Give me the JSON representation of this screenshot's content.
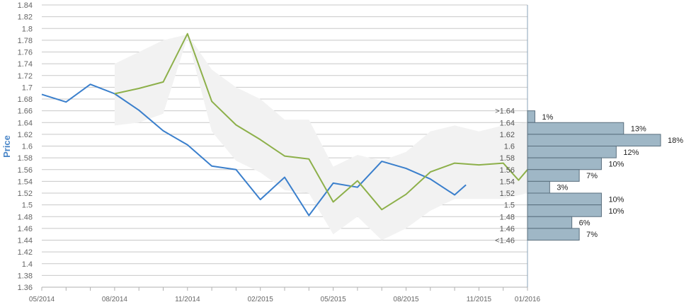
{
  "chart_data": {
    "type": "line",
    "ylabel": "Price",
    "ylim": [
      1.36,
      1.84
    ],
    "yticks": [
      "1.36",
      "1.38",
      "1.4",
      "1.42",
      "1.44",
      "1.46",
      "1.48",
      "1.5",
      "1.52",
      "1.54",
      "1.56",
      "1.58",
      "1.6",
      "1.62",
      "1.64",
      "1.66",
      "1.68",
      "1.7",
      "1.72",
      "1.74",
      "1.76",
      "1.78",
      "1.8",
      "1.82",
      "1.84"
    ],
    "xlim": [
      "2014-05",
      "2016-01"
    ],
    "xticks": [
      {
        "date": "2014-05",
        "label": "05/2014"
      },
      {
        "date": "2014-08",
        "label": "08/2014"
      },
      {
        "date": "2014-11",
        "label": "11/2014"
      },
      {
        "date": "2015-02",
        "label": "02/2015"
      },
      {
        "date": "2015-05",
        "label": "05/2015"
      },
      {
        "date": "2015-08",
        "label": "08/2015"
      },
      {
        "date": "2015-11",
        "label": "11/2015"
      },
      {
        "date": "2016-01",
        "label": "01/2016"
      }
    ],
    "grid": true,
    "series": [
      {
        "color": "#3a7fcc",
        "points": [
          [
            "2014-05",
            1.688
          ],
          [
            "2014-06",
            1.675
          ],
          [
            "2014-07",
            1.705
          ],
          [
            "2014-08",
            1.689
          ],
          [
            "2014-09",
            1.661
          ],
          [
            "2014-10",
            1.626
          ],
          [
            "2014-11",
            1.602
          ],
          [
            "2014-12",
            1.566
          ],
          [
            "2015-01",
            1.56
          ],
          [
            "2015-02",
            1.509
          ],
          [
            "2015-03",
            1.547
          ],
          [
            "2015-04",
            1.482
          ],
          [
            "2015-05",
            1.537
          ],
          [
            "2015-06",
            1.53
          ],
          [
            "2015-07",
            1.574
          ],
          [
            "2015-08",
            1.562
          ],
          [
            "2015-09",
            1.544
          ],
          [
            "2015-10",
            1.517
          ],
          [
            "2015-10-15",
            1.534
          ]
        ]
      },
      {
        "color": "#8db04a",
        "points": [
          [
            "2014-08",
            1.689
          ],
          [
            "2014-09",
            1.698
          ],
          [
            "2014-10",
            1.709
          ],
          [
            "2014-11",
            1.791
          ],
          [
            "2014-12",
            1.676
          ],
          [
            "2015-01",
            1.636
          ],
          [
            "2015-02",
            1.611
          ],
          [
            "2015-03",
            1.583
          ],
          [
            "2015-04",
            1.578
          ],
          [
            "2015-05",
            1.505
          ],
          [
            "2015-06",
            1.541
          ],
          [
            "2015-07",
            1.492
          ],
          [
            "2015-08",
            1.518
          ],
          [
            "2015-09",
            1.556
          ],
          [
            "2015-10",
            1.571
          ],
          [
            "2015-11",
            1.568
          ],
          [
            "2015-12",
            1.571
          ],
          [
            "2015-12-20",
            1.542
          ],
          [
            "2016-01",
            1.56
          ]
        ]
      }
    ],
    "band": {
      "color": "#f2f2f2",
      "upper": [
        [
          "2014-08",
          1.74
        ],
        [
          "2014-09",
          1.76
        ],
        [
          "2014-10",
          1.78
        ],
        [
          "2014-11",
          1.79
        ],
        [
          "2014-12",
          1.73
        ],
        [
          "2015-01",
          1.7
        ],
        [
          "2015-02",
          1.68
        ],
        [
          "2015-03",
          1.645
        ],
        [
          "2015-04",
          1.645
        ],
        [
          "2015-05",
          1.565
        ],
        [
          "2015-06",
          1.585
        ],
        [
          "2015-07",
          1.575
        ],
        [
          "2015-08",
          1.59
        ],
        [
          "2015-09",
          1.625
        ],
        [
          "2015-10",
          1.635
        ],
        [
          "2015-11",
          1.625
        ],
        [
          "2015-12",
          1.635
        ],
        [
          "2016-01",
          1.64
        ]
      ],
      "lower": [
        [
          "2014-08",
          1.635
        ],
        [
          "2014-09",
          1.64
        ],
        [
          "2014-10",
          1.655
        ],
        [
          "2014-11",
          1.785
        ],
        [
          "2014-12",
          1.625
        ],
        [
          "2015-01",
          1.575
        ],
        [
          "2015-02",
          1.555
        ],
        [
          "2015-03",
          1.525
        ],
        [
          "2015-04",
          1.52
        ],
        [
          "2015-05",
          1.45
        ],
        [
          "2015-06",
          1.48
        ],
        [
          "2015-07",
          1.44
        ],
        [
          "2015-08",
          1.46
        ],
        [
          "2015-09",
          1.49
        ],
        [
          "2015-10",
          1.51
        ],
        [
          "2015-11",
          1.51
        ],
        [
          "2015-12",
          1.51
        ],
        [
          "2016-01",
          1.52
        ]
      ]
    },
    "distribution": {
      "color": "#9fb7c6",
      "bins": [
        {
          "label": ">1.64",
          "value": 1
        },
        {
          "label": "1.64",
          "value": 13
        },
        {
          "label": "1.62",
          "value": 18
        },
        {
          "label": "1.6",
          "value": 12
        },
        {
          "label": "1.58",
          "value": 10
        },
        {
          "label": "1.56",
          "value": 7
        },
        {
          "label": "1.54",
          "value": 3
        },
        {
          "label": "1.52",
          "value": 10
        },
        {
          "label": "1.5",
          "value": 10
        },
        {
          "label": "1.48",
          "value": 6
        },
        {
          "label": "1.46",
          "value": 7
        },
        {
          "label": "<1.46",
          "value": null
        }
      ],
      "percent_labels": [
        "1%",
        "13%",
        "18%",
        "12%",
        "10%",
        "7%",
        "3%",
        "10%",
        "10%",
        "6%",
        "7%"
      ]
    }
  }
}
